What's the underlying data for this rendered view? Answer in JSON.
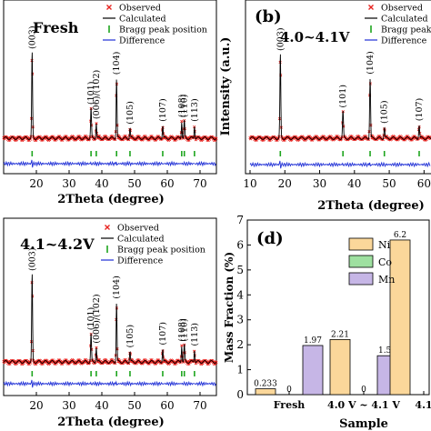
{
  "chart_data": [
    {
      "type": "line",
      "panel_label": "",
      "title": "Fresh",
      "xlabel": "2Theta (degree)",
      "ylabel": "",
      "xlim": [
        10,
        75
      ],
      "x_ticks": [
        20,
        30,
        40,
        50,
        60,
        70
      ],
      "legend": [
        "Observed",
        "Calculated",
        "Bragg peak position",
        "Difference"
      ],
      "legend_placement": "top-right",
      "peaks": [
        {
          "label": "(003)",
          "x": 18.7,
          "h": 1.0
        },
        {
          "label": "(101)",
          "x": 36.7,
          "h": 0.35
        },
        {
          "label": "(006)/(102)",
          "x": 38.3,
          "h": 0.18
        },
        {
          "label": "(104)",
          "x": 44.5,
          "h": 0.7
        },
        {
          "label": "(105)",
          "x": 48.6,
          "h": 0.12
        },
        {
          "label": "(107)",
          "x": 58.6,
          "h": 0.15
        },
        {
          "label": "(108)",
          "x": 64.4,
          "h": 0.2
        },
        {
          "label": "(110)",
          "x": 65.2,
          "h": 0.2
        },
        {
          "label": "(113)",
          "x": 68.3,
          "h": 0.15
        }
      ]
    },
    {
      "type": "line",
      "panel_label": "(b)",
      "title": "4.0~4.1V",
      "xlabel": "2Theta (degree)",
      "ylabel": "Intensity (a.u.)",
      "xlim": [
        10,
        62
      ],
      "x_ticks": [
        10,
        20,
        30,
        40,
        50,
        60
      ],
      "legend": [
        "Observed",
        "Calculated",
        "Bragg peak position",
        "Difference"
      ],
      "legend_placement": "top-right",
      "peaks": [
        {
          "label": "(003)",
          "x": 18.7,
          "h": 1.0
        },
        {
          "label": "(101)",
          "x": 36.7,
          "h": 0.32
        },
        {
          "label": "(104)",
          "x": 44.5,
          "h": 0.72
        },
        {
          "label": "(105)",
          "x": 48.6,
          "h": 0.13
        },
        {
          "label": "(107)",
          "x": 58.6,
          "h": 0.16
        }
      ]
    },
    {
      "type": "line",
      "panel_label": "",
      "title": "4.1~4.2V",
      "xlabel": "2Theta (degree)",
      "ylabel": "",
      "xlim": [
        10,
        75
      ],
      "x_ticks": [
        20,
        30,
        40,
        50,
        60,
        70
      ],
      "legend": [
        "Observed",
        "Calculated",
        "Bragg peak position",
        "Difference"
      ],
      "legend_placement": "top-right",
      "peaks": [
        {
          "label": "(003)",
          "x": 18.7,
          "h": 1.0
        },
        {
          "label": "(101)",
          "x": 36.7,
          "h": 0.32
        },
        {
          "label": "(006)/(102)",
          "x": 38.3,
          "h": 0.17
        },
        {
          "label": "(104)",
          "x": 44.5,
          "h": 0.68
        },
        {
          "label": "(105)",
          "x": 48.6,
          "h": 0.12
        },
        {
          "label": "(107)",
          "x": 58.6,
          "h": 0.15
        },
        {
          "label": "(108)",
          "x": 64.4,
          "h": 0.19
        },
        {
          "label": "(110)",
          "x": 65.2,
          "h": 0.19
        },
        {
          "label": "(113)",
          "x": 68.3,
          "h": 0.14
        }
      ]
    },
    {
      "type": "bar",
      "panel_label": "(d)",
      "title": "",
      "xlabel": "Sample",
      "ylabel": "Mass Fraction (%)",
      "ylim": [
        0,
        7
      ],
      "y_ticks": [
        0,
        1,
        2,
        3,
        4,
        5,
        6,
        7
      ],
      "categories": [
        "Fresh",
        "4.0 V ~ 4.1 V",
        "4.1"
      ],
      "series": [
        {
          "name": "Ni",
          "color": "#fbd79a",
          "values": [
            0.233,
            2.21,
            6.2
          ],
          "labels": [
            "0.233",
            "2.21",
            "6.2"
          ]
        },
        {
          "name": "Co",
          "color": "#9ee0a0",
          "values": [
            0,
            0,
            null
          ],
          "labels": [
            "0",
            "0",
            ""
          ]
        },
        {
          "name": "Mn",
          "color": "#c6b6e6",
          "values": [
            1.97,
            1.56,
            null
          ],
          "labels": [
            "1.97",
            "1.56",
            ""
          ]
        }
      ],
      "legend_placement": "top-left"
    }
  ],
  "colors": {
    "observed": "#e8231f",
    "calculated": "#000000",
    "bragg": "#1ea51e",
    "difference": "#1f2fd6"
  }
}
